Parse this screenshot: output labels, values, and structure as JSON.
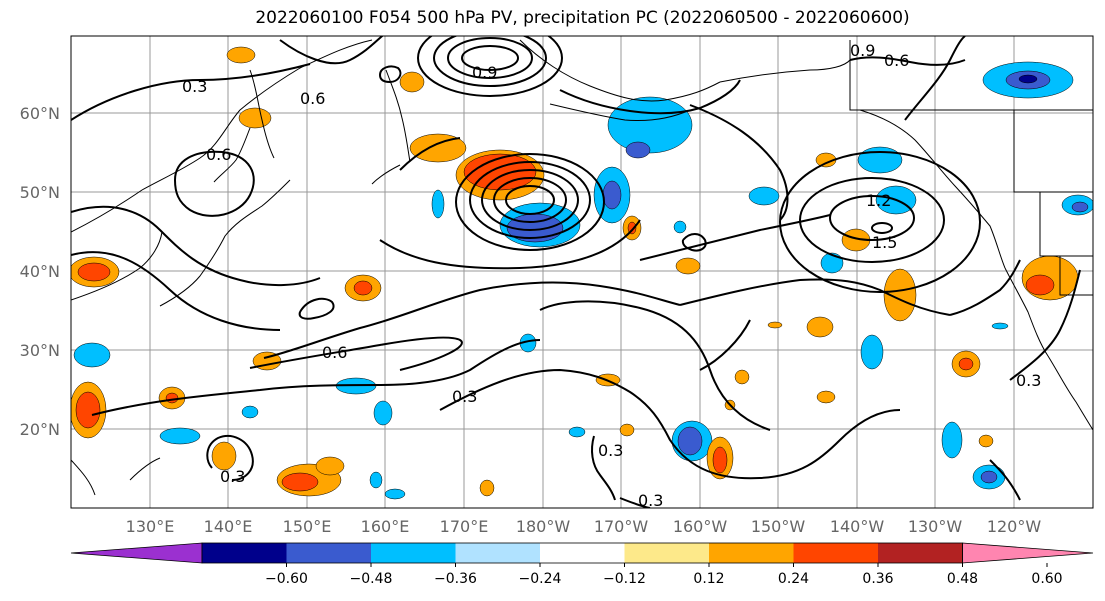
{
  "title": "2022060100 F054 500 hPa PV, precipitation PC (2022060500 - 2022060600)",
  "map": {
    "lat_labels": [
      "60°N",
      "50°N",
      "40°N",
      "30°N",
      "20°N"
    ],
    "lon_labels": [
      "130°E",
      "140°E",
      "150°E",
      "160°E",
      "170°E",
      "180°W",
      "170°W",
      "160°W",
      "150°W",
      "140°W",
      "130°W",
      "120°W"
    ],
    "contour_labels": [
      "0.3",
      "0.6",
      "0.9",
      "1.2",
      "1.5",
      "0.6",
      "0.3",
      "0.9",
      "0.6",
      "0.3",
      "0.6",
      "0.3",
      "0.3",
      "0.3"
    ]
  },
  "colorbar": {
    "tick_labels": [
      "−0.60",
      "−0.48",
      "−0.36",
      "−0.24",
      "−0.12",
      "0.12",
      "0.24",
      "0.36",
      "0.48",
      "0.60"
    ],
    "colors": [
      "#9b30d0",
      "#00008b",
      "#3a5bcf",
      "#00bfff",
      "#b0e2ff",
      "#ffffff",
      "#fde98a",
      "#ffa500",
      "#ff4500",
      "#b22222",
      "#ff85b0"
    ]
  }
}
